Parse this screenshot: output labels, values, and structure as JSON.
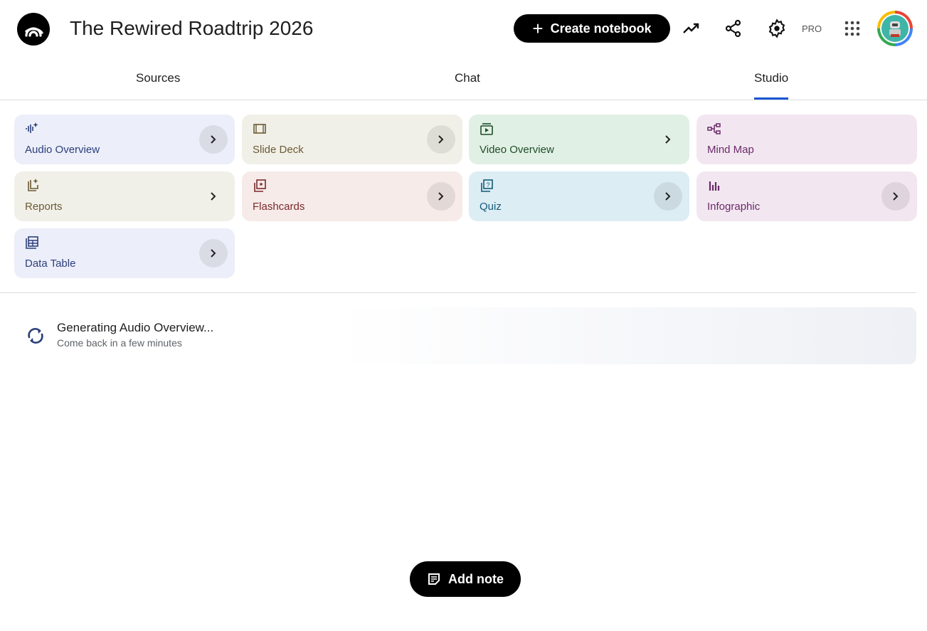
{
  "header": {
    "title": "The Rewired Roadtrip 2026",
    "create_label": "Create notebook",
    "pro_label": "PRO"
  },
  "tabs": [
    {
      "label": "Sources"
    },
    {
      "label": "Chat"
    },
    {
      "label": "Studio",
      "active": true
    }
  ],
  "cards": [
    {
      "label": "Audio Overview",
      "icon": "audio-waveform-sparkle-icon",
      "bg": "#eceef9",
      "fg": "#2c3f7a",
      "button": "circle"
    },
    {
      "label": "Slide Deck",
      "icon": "slides-icon",
      "bg": "#f1f0e8",
      "fg": "#6b5a35",
      "button": "circle"
    },
    {
      "label": "Video Overview",
      "icon": "video-icon",
      "bg": "#e1f0e4",
      "fg": "#1f4d2a",
      "button": "plain"
    },
    {
      "label": "Mind Map",
      "icon": "mind-map-icon",
      "bg": "#f2e7f0",
      "fg": "#6a2a6a",
      "button": "none"
    },
    {
      "label": "Reports",
      "icon": "report-sparkle-icon",
      "bg": "#f1f0e8",
      "fg": "#6b5a35",
      "button": "plain"
    },
    {
      "label": "Flashcards",
      "icon": "flashcards-icon",
      "bg": "#f6ebe9",
      "fg": "#7a2a2a",
      "button": "circle"
    },
    {
      "label": "Quiz",
      "icon": "quiz-icon",
      "bg": "#dcedf4",
      "fg": "#135a78",
      "button": "circle"
    },
    {
      "label": "Infographic",
      "icon": "infographic-icon",
      "bg": "#f2e7f0",
      "fg": "#6a2a6a",
      "button": "circle"
    },
    {
      "label": "Data Table",
      "icon": "data-table-icon",
      "bg": "#eceef9",
      "fg": "#2c3f7a",
      "button": "circle"
    }
  ],
  "generating": {
    "title": "Generating Audio Overview...",
    "subtitle": "Come back in a few minutes"
  },
  "add_note_label": "Add note"
}
